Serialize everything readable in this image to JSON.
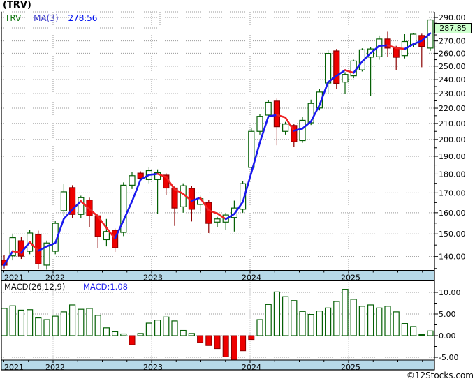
{
  "title": "(TRV)",
  "legend": {
    "symbol": "TRV",
    "ma_label": "MA(3)",
    "ma_value": "278.56"
  },
  "price_badge": "287.85",
  "watermark": "©12Stocks.com",
  "macd_legend": {
    "label": "MACD(26,12,9)",
    "value_label": "MACD:1.08"
  },
  "colors": {
    "up": "#056005",
    "up_fill": "#ffffff",
    "down": "#ee0000",
    "down_border": "#8b0000",
    "ma_up": "#1a1aee",
    "ma_down": "#ee2222",
    "grid": "#999999",
    "frame": "#000000",
    "band": "#b7d9e8",
    "badge_bg": "#ccffcc",
    "legend_symbol": "#117711",
    "legend_ma": "#3a3acc",
    "legend_value": "#0011ee",
    "macd_label": "#111111",
    "macd_value": "#2222ee"
  },
  "chart_data": [
    {
      "type": "candlestick",
      "title": "(TRV)",
      "symbol": "TRV",
      "ma_period": 3,
      "scale": "log",
      "ylim": [
        134,
        294
      ],
      "ytick_step": 10,
      "ytick_min": 140,
      "ytick_max": 290,
      "grid": true,
      "years": [
        "2021",
        "2022",
        "2023",
        "2024",
        "2025"
      ],
      "ohlc": [
        [
          138.5,
          140.5,
          135.0,
          136.4
        ],
        [
          140.3,
          150.0,
          138.4,
          148.3
        ],
        [
          146.9,
          148.5,
          139.0,
          140.2
        ],
        [
          142.3,
          152.0,
          141.0,
          150.4
        ],
        [
          149.7,
          151.5,
          134.8,
          136.9
        ],
        [
          136.4,
          147.0,
          134.5,
          145.9
        ],
        [
          142.3,
          156.0,
          141.0,
          154.9
        ],
        [
          161.0,
          174.5,
          158.3,
          170.5
        ],
        [
          172.7,
          174.0,
          157.6,
          159.2
        ],
        [
          159.2,
          168.5,
          157.5,
          167.5
        ],
        [
          166.3,
          167.5,
          153.0,
          158.5
        ],
        [
          158.5,
          159.5,
          143.6,
          148.8
        ],
        [
          147.4,
          157.0,
          144.4,
          151.1
        ],
        [
          151.7,
          152.5,
          142.0,
          143.8
        ],
        [
          150.7,
          175.5,
          149.0,
          174.0
        ],
        [
          174.0,
          181.0,
          172.0,
          179.1
        ],
        [
          180.5,
          181.5,
          176.0,
          177.7
        ],
        [
          177.0,
          183.9,
          175.0,
          181.9
        ],
        [
          177.0,
          182.6,
          159.3,
          180.7
        ],
        [
          179.4,
          180.4,
          169.0,
          172.5
        ],
        [
          172.5,
          173.5,
          153.7,
          162.3
        ],
        [
          162.9,
          175.0,
          160.0,
          173.7
        ],
        [
          172.3,
          173.5,
          155.8,
          161.7
        ],
        [
          164.1,
          168.5,
          160.5,
          167.0
        ],
        [
          165.1,
          166.5,
          150.4,
          154.9
        ],
        [
          155.5,
          158.0,
          153.0,
          157.0
        ],
        [
          155.5,
          160.0,
          151.7,
          158.9
        ],
        [
          157.7,
          166.0,
          151.1,
          162.3
        ],
        [
          161.7,
          176.2,
          160.0,
          174.8
        ],
        [
          183.7,
          207.0,
          182.0,
          205.0
        ],
        [
          205.0,
          216.0,
          203.0,
          214.6
        ],
        [
          215.4,
          225.5,
          213.5,
          224.0
        ],
        [
          224.8,
          226.5,
          196.5,
          207.9
        ],
        [
          205.0,
          211.0,
          203.0,
          209.6
        ],
        [
          208.7,
          209.5,
          195.6,
          198.6
        ],
        [
          199.3,
          214.0,
          198.0,
          212.0
        ],
        [
          210.4,
          225.8,
          209.0,
          223.2
        ],
        [
          220.1,
          233.0,
          218.5,
          231.1
        ],
        [
          237.5,
          263.0,
          230.0,
          259.9
        ],
        [
          261.9,
          263.5,
          233.0,
          237.3
        ],
        [
          238.2,
          245.5,
          229.6,
          243.8
        ],
        [
          242.8,
          255.0,
          241.0,
          254.0
        ],
        [
          247.2,
          264.0,
          246.0,
          262.8
        ],
        [
          257.0,
          265.0,
          228.3,
          263.5
        ],
        [
          257.3,
          274.5,
          255.0,
          271.6
        ],
        [
          271.6,
          277.7,
          257.3,
          264.2
        ],
        [
          264.2,
          266.0,
          247.3,
          256.9
        ],
        [
          258.2,
          275.6,
          256.0,
          269.5
        ],
        [
          267.2,
          276.5,
          265.0,
          275.6
        ],
        [
          274.5,
          276.0,
          249.2,
          265.5
        ],
        [
          264.2,
          288.5,
          262.0,
          287.85
        ]
      ],
      "last_price": 287.85
    },
    {
      "type": "bar",
      "name": "MACD histogram",
      "indicator": "MACD (26,12,9)",
      "ylim": [
        -7.5,
        12.5
      ],
      "yticks": [
        10,
        5,
        0,
        -5
      ],
      "grid": true,
      "last_value": 1.08,
      "values": [
        6.3,
        6.9,
        5.9,
        6.0,
        4.1,
        3.7,
        4.5,
        5.5,
        7.1,
        6.1,
        6.3,
        4.7,
        1.8,
        0.9,
        0.4,
        -2.1,
        0.5,
        2.9,
        3.6,
        4.3,
        3.4,
        1.2,
        0.5,
        -1.6,
        -2.3,
        -3.0,
        -4.9,
        -5.7,
        -3.5,
        -0.9,
        3.7,
        7.2,
        10.1,
        9.0,
        8.1,
        5.6,
        4.9,
        5.7,
        6.4,
        7.9,
        10.7,
        8.4,
        6.8,
        7.1,
        6.4,
        6.8,
        5.5,
        2.8,
        2.1,
        0.05,
        1.08
      ]
    }
  ]
}
